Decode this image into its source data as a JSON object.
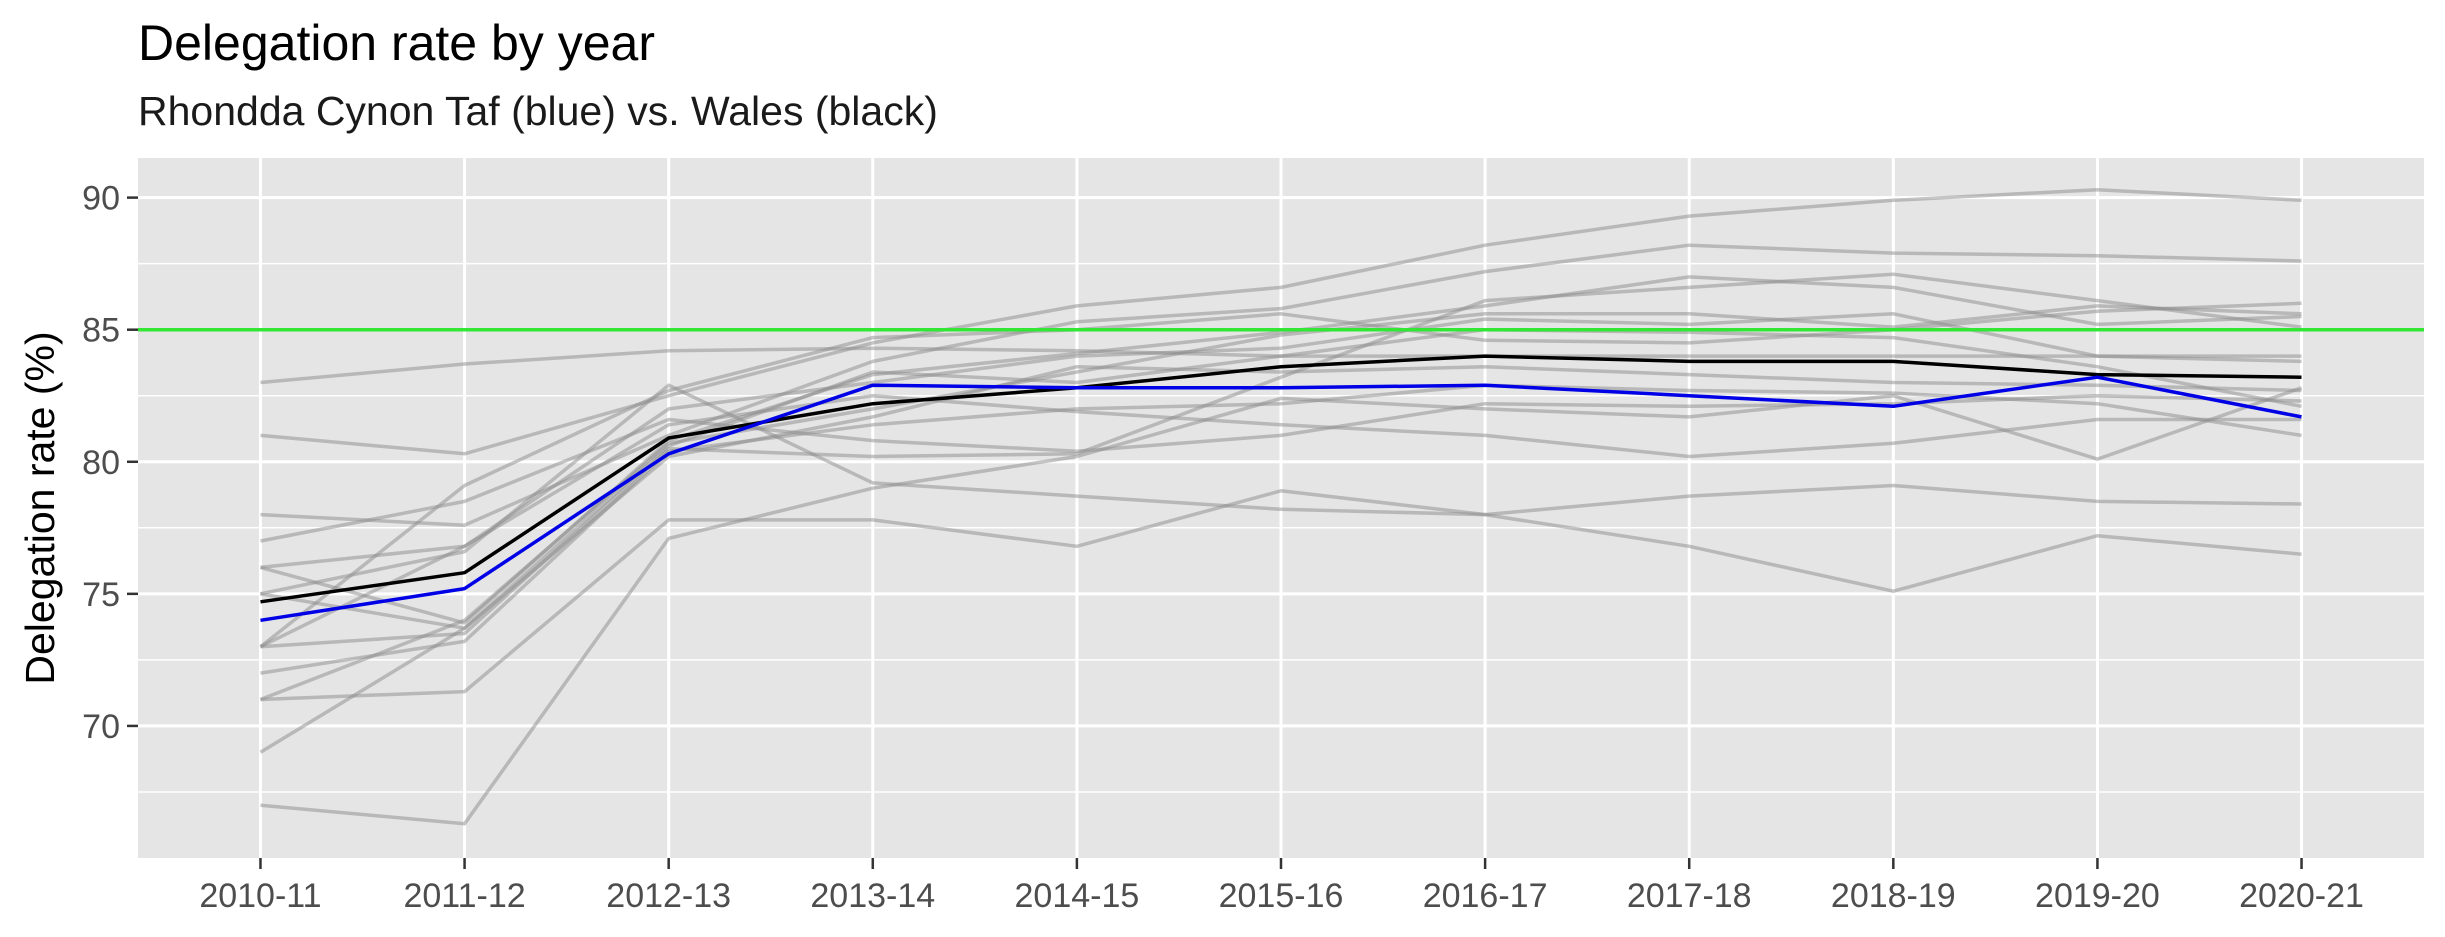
{
  "chart_data": {
    "type": "line",
    "title": "Delegation rate by year",
    "subtitle": "Rhondda Cynon Taf (blue) vs. Wales (black)",
    "xlabel": "",
    "ylabel": "Delegation rate (%)",
    "categories": [
      "2010-11",
      "2011-12",
      "2012-13",
      "2013-14",
      "2014-15",
      "2015-16",
      "2016-17",
      "2017-18",
      "2018-19",
      "2019-20",
      "2020-21"
    ],
    "ylim": [
      65,
      91.5
    ],
    "yticks": [
      70,
      75,
      80,
      85,
      90
    ],
    "grid": true,
    "reference_line": {
      "y": 85,
      "color": "#33e633"
    },
    "colors": {
      "background": "#e5e5e5",
      "grid": "#ffffff",
      "other": "#8c8c8c",
      "highlight": "#0000e6",
      "average": "#000000"
    },
    "series": [
      {
        "name": "Rhondda Cynon Taf",
        "role": "highlight",
        "values": [
          74.0,
          75.2,
          80.3,
          82.9,
          82.8,
          82.8,
          82.9,
          82.5,
          82.1,
          83.2,
          81.7
        ]
      },
      {
        "name": "Wales",
        "role": "average",
        "values": [
          74.7,
          75.8,
          80.9,
          82.2,
          82.8,
          83.6,
          84.0,
          83.8,
          83.8,
          83.3,
          83.2
        ]
      },
      {
        "role": "other",
        "values": [
          83.0,
          83.7,
          84.2,
          84.3,
          84.2,
          84.0,
          84.0,
          84.0,
          84.0,
          84.0,
          84.0
        ]
      },
      {
        "role": "other",
        "values": [
          81.0,
          80.3,
          82.5,
          84.5,
          85.9,
          86.6,
          88.2,
          89.3,
          89.9,
          90.3,
          89.9
        ]
      },
      {
        "role": "other",
        "values": [
          78.0,
          77.6,
          81.0,
          83.8,
          85.3,
          85.8,
          87.2,
          88.2,
          87.9,
          87.8,
          87.6
        ]
      },
      {
        "role": "other",
        "values": [
          77.0,
          78.5,
          81.6,
          80.8,
          80.4,
          81.0,
          82.2,
          82.1,
          82.2,
          82.5,
          82.3
        ]
      },
      {
        "role": "other",
        "values": [
          76.0,
          73.9,
          80.8,
          83.3,
          84.1,
          84.9,
          85.9,
          87.0,
          86.6,
          85.2,
          85.5
        ]
      },
      {
        "role": "other",
        "values": [
          76.0,
          76.8,
          81.4,
          82.5,
          81.9,
          81.4,
          81.0,
          80.2,
          80.7,
          81.6,
          81.6
        ]
      },
      {
        "role": "other",
        "values": [
          75.0,
          73.7,
          80.2,
          81.7,
          83.6,
          83.4,
          83.6,
          83.3,
          83.0,
          82.9,
          82.7
        ]
      },
      {
        "role": "other",
        "values": [
          75.0,
          76.6,
          82.9,
          79.2,
          78.7,
          78.2,
          78.0,
          78.7,
          79.1,
          78.5,
          78.4
        ]
      },
      {
        "role": "other",
        "values": [
          73.0,
          79.1,
          82.7,
          84.7,
          85.0,
          85.6,
          84.6,
          84.5,
          85.0,
          85.7,
          86.0
        ]
      },
      {
        "role": "other",
        "values": [
          73.0,
          73.5,
          80.5,
          80.2,
          80.3,
          83.2,
          86.1,
          86.6,
          87.1,
          86.1,
          85.1
        ]
      },
      {
        "role": "other",
        "values": [
          72.0,
          73.2,
          80.4,
          81.4,
          82.0,
          82.2,
          82.9,
          82.7,
          82.6,
          82.2,
          81.0
        ]
      },
      {
        "role": "other",
        "values": [
          71.0,
          71.3,
          77.8,
          77.8,
          76.8,
          78.9,
          78.0,
          76.8,
          75.1,
          77.2,
          76.5
        ]
      },
      {
        "role": "other",
        "values": [
          69.0,
          73.7,
          80.6,
          83.4,
          83.0,
          84.0,
          85.0,
          84.9,
          84.7,
          83.6,
          82.1
        ]
      },
      {
        "role": "other",
        "values": [
          67.0,
          66.3,
          77.1,
          79.0,
          80.2,
          82.4,
          82.0,
          81.7,
          82.5,
          80.1,
          82.8
        ]
      },
      {
        "role": "other",
        "values": [
          73.0,
          76.8,
          82.0,
          83.0,
          84.0,
          84.3,
          85.4,
          85.2,
          85.6,
          84.0,
          83.8
        ]
      },
      {
        "role": "other",
        "values": [
          71.0,
          74.0,
          80.7,
          82.0,
          83.4,
          84.8,
          85.6,
          85.6,
          85.1,
          85.9,
          85.6
        ]
      }
    ]
  }
}
